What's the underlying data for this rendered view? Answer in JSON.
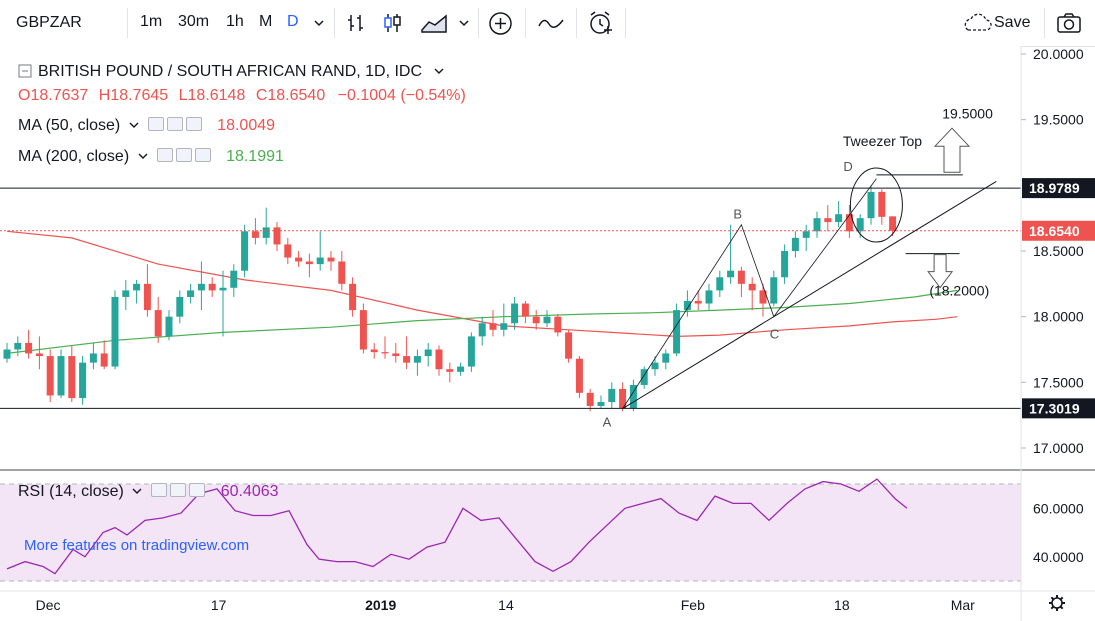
{
  "toolbar": {
    "symbol": "GBPZAR",
    "intervals": [
      "1m",
      "30m",
      "1h",
      "M",
      "D"
    ],
    "active_interval": "D",
    "save_label": "Save"
  },
  "legend": {
    "title": "BRITISH POUND / SOUTH AFRICAN RAND, 1D, IDC",
    "ohlc": {
      "o_label": "O",
      "o": "18.7637",
      "h_label": "H",
      "h": "18.7645",
      "l_label": "L",
      "l": "18.6148",
      "c_label": "C",
      "c": "18.6540",
      "change": "−0.1004 (−0.54%)"
    },
    "ma50_label": "MA (50, close)",
    "ma50_value": "18.0049",
    "ma200_label": "MA (200, close)",
    "ma200_value": "18.1991",
    "rsi_label": "RSI (14, close)",
    "rsi_value": "60.4063"
  },
  "watermark": "More features on tradingview.com",
  "colors": {
    "up": "#26a69a",
    "down": "#ef5350",
    "ma50": "#ef5350",
    "ma200": "#4caf50",
    "rsi": "#9c27b0",
    "rsi_band": "#f3e5f5",
    "accent": "#2962ff"
  },
  "chart_data": {
    "type": "candlestick",
    "price_ylim": [
      16.7,
      20.1
    ],
    "price_ticks": [
      "20.0000",
      "19.5000",
      "18.5000",
      "18.0000",
      "17.5000",
      "17.0000"
    ],
    "price_tick_values": [
      20.0,
      19.5,
      18.5,
      18.0,
      17.5,
      17.0
    ],
    "x_labels": [
      "Dec",
      "17",
      "2019",
      "14",
      "Feb",
      "18",
      "Mar",
      "18"
    ],
    "x_label_index": [
      3.8,
      19.6,
      34.6,
      46.2,
      63.5,
      77.3,
      88.5,
      102.0
    ],
    "horizontal_levels": [
      {
        "value": 18.9789,
        "label": "18.9789"
      },
      {
        "value": 17.3019,
        "label": "17.3019"
      }
    ],
    "last_price": {
      "value": 18.654,
      "label": "18.6540"
    },
    "candles": [
      [
        17.68,
        17.8,
        17.65,
        17.75
      ],
      [
        17.75,
        17.85,
        17.7,
        17.8
      ],
      [
        17.8,
        17.9,
        17.68,
        17.72
      ],
      [
        17.72,
        17.85,
        17.6,
        17.7
      ],
      [
        17.7,
        17.75,
        17.35,
        17.4
      ],
      [
        17.4,
        17.75,
        17.38,
        17.7
      ],
      [
        17.7,
        17.78,
        17.35,
        17.38
      ],
      [
        17.38,
        17.7,
        17.33,
        17.65
      ],
      [
        17.65,
        17.8,
        17.6,
        17.72
      ],
      [
        17.72,
        17.82,
        17.6,
        17.62
      ],
      [
        17.62,
        18.2,
        17.6,
        18.15
      ],
      [
        18.15,
        18.28,
        18.05,
        18.2
      ],
      [
        18.2,
        18.28,
        18.1,
        18.25
      ],
      [
        18.25,
        18.4,
        18.0,
        18.05
      ],
      [
        18.05,
        18.15,
        17.8,
        17.85
      ],
      [
        17.85,
        18.05,
        17.82,
        18.0
      ],
      [
        18.0,
        18.2,
        17.95,
        18.15
      ],
      [
        18.15,
        18.25,
        18.1,
        18.2
      ],
      [
        18.2,
        18.42,
        18.05,
        18.25
      ],
      [
        18.25,
        18.3,
        18.15,
        18.2
      ],
      [
        18.2,
        18.35,
        17.85,
        18.22
      ],
      [
        18.22,
        18.4,
        18.15,
        18.35
      ],
      [
        18.35,
        18.7,
        18.3,
        18.65
      ],
      [
        18.65,
        18.75,
        18.55,
        18.6
      ],
      [
        18.6,
        18.83,
        18.55,
        18.68
      ],
      [
        18.68,
        18.72,
        18.5,
        18.55
      ],
      [
        18.55,
        18.6,
        18.4,
        18.45
      ],
      [
        18.45,
        18.5,
        18.38,
        18.42
      ],
      [
        18.42,
        18.48,
        18.3,
        18.4
      ],
      [
        18.4,
        18.65,
        18.35,
        18.45
      ],
      [
        18.45,
        18.5,
        18.35,
        18.42
      ],
      [
        18.42,
        18.5,
        18.2,
        18.25
      ],
      [
        18.25,
        18.3,
        18.0,
        18.05
      ],
      [
        18.05,
        18.1,
        17.72,
        17.75
      ],
      [
        17.75,
        17.8,
        17.68,
        17.73
      ],
      [
        17.73,
        17.85,
        17.68,
        17.72
      ],
      [
        17.72,
        17.8,
        17.65,
        17.7
      ],
      [
        17.7,
        17.85,
        17.6,
        17.65
      ],
      [
        17.65,
        17.75,
        17.55,
        17.7
      ],
      [
        17.7,
        17.8,
        17.62,
        17.75
      ],
      [
        17.75,
        17.78,
        17.55,
        17.6
      ],
      [
        17.6,
        17.65,
        17.5,
        17.58
      ],
      [
        17.58,
        17.65,
        17.55,
        17.62
      ],
      [
        17.62,
        17.88,
        17.58,
        17.85
      ],
      [
        17.85,
        18.0,
        17.78,
        17.95
      ],
      [
        17.95,
        18.05,
        17.85,
        17.9
      ],
      [
        17.9,
        18.1,
        17.85,
        17.95
      ],
      [
        17.95,
        18.15,
        17.9,
        18.1
      ],
      [
        18.1,
        18.12,
        17.95,
        18.0
      ],
      [
        18.0,
        18.05,
        17.9,
        17.95
      ],
      [
        17.95,
        18.05,
        17.92,
        18.0
      ],
      [
        18.0,
        18.02,
        17.85,
        17.88
      ],
      [
        17.88,
        17.9,
        17.65,
        17.68
      ],
      [
        17.68,
        17.7,
        17.38,
        17.42
      ],
      [
        17.42,
        17.45,
        17.28,
        17.32
      ],
      [
        17.32,
        17.4,
        17.3,
        17.35
      ],
      [
        17.35,
        17.5,
        17.3,
        17.45
      ],
      [
        17.45,
        17.5,
        17.28,
        17.3
      ],
      [
        17.3,
        17.52,
        17.28,
        17.48
      ],
      [
        17.48,
        17.62,
        17.45,
        17.6
      ],
      [
        17.6,
        17.7,
        17.55,
        17.65
      ],
      [
        17.65,
        17.75,
        17.6,
        17.72
      ],
      [
        17.72,
        18.1,
        17.7,
        18.05
      ],
      [
        18.05,
        18.2,
        18.0,
        18.12
      ],
      [
        18.12,
        18.2,
        18.05,
        18.1
      ],
      [
        18.1,
        18.25,
        18.05,
        18.2
      ],
      [
        18.2,
        18.35,
        18.15,
        18.3
      ],
      [
        18.3,
        18.7,
        18.25,
        18.35
      ],
      [
        18.35,
        18.38,
        18.15,
        18.25
      ],
      [
        18.25,
        18.3,
        18.05,
        18.2
      ],
      [
        18.2,
        18.25,
        18.0,
        18.1
      ],
      [
        18.1,
        18.35,
        18.08,
        18.3
      ],
      [
        18.3,
        18.55,
        18.25,
        18.5
      ],
      [
        18.5,
        18.65,
        18.45,
        18.6
      ],
      [
        18.6,
        18.7,
        18.5,
        18.65
      ],
      [
        18.65,
        18.8,
        18.6,
        18.75
      ],
      [
        18.75,
        18.85,
        18.65,
        18.72
      ],
      [
        18.72,
        18.88,
        18.68,
        18.78
      ],
      [
        18.78,
        18.85,
        18.6,
        18.65
      ],
      [
        18.65,
        18.78,
        18.6,
        18.75
      ],
      [
        18.75,
        19.0,
        18.7,
        18.95
      ],
      [
        18.95,
        18.97,
        18.7,
        18.76
      ],
      [
        18.7637,
        18.7645,
        18.6148,
        18.654
      ]
    ],
    "ma50": [
      [
        0,
        18.65
      ],
      [
        6,
        18.6
      ],
      [
        14,
        18.4
      ],
      [
        22,
        18.28
      ],
      [
        30,
        18.2
      ],
      [
        38,
        18.05
      ],
      [
        46,
        17.93
      ],
      [
        52,
        17.9
      ],
      [
        56,
        17.88
      ],
      [
        62,
        17.85
      ],
      [
        66,
        17.86
      ],
      [
        72,
        17.9
      ],
      [
        78,
        17.93
      ],
      [
        82,
        17.96
      ],
      [
        86,
        17.98
      ],
      [
        88,
        18.0
      ]
    ],
    "ma200": [
      [
        0,
        17.72
      ],
      [
        10,
        17.82
      ],
      [
        20,
        17.88
      ],
      [
        30,
        17.92
      ],
      [
        38,
        17.97
      ],
      [
        46,
        18.0
      ],
      [
        54,
        18.02
      ],
      [
        60,
        18.03
      ],
      [
        66,
        18.05
      ],
      [
        72,
        18.07
      ],
      [
        78,
        18.1
      ],
      [
        84,
        18.15
      ],
      [
        88,
        18.2
      ]
    ],
    "rsi": {
      "ylim": [
        25,
        80
      ],
      "ticks": [
        "60.0000",
        "40.0000"
      ],
      "tick_values": [
        60,
        40
      ],
      "band": [
        30,
        70
      ],
      "values": [
        [
          0,
          35
        ],
        [
          3,
          38
        ],
        [
          6,
          36
        ],
        [
          8,
          33
        ],
        [
          11,
          43
        ],
        [
          13,
          40
        ],
        [
          16,
          50
        ],
        [
          18,
          52
        ],
        [
          20,
          49
        ],
        [
          23,
          55
        ],
        [
          26,
          56
        ],
        [
          29,
          58
        ],
        [
          32,
          66
        ],
        [
          35,
          68
        ],
        [
          38,
          59
        ],
        [
          41,
          57
        ],
        [
          44,
          57
        ],
        [
          47,
          59
        ],
        [
          50,
          45
        ],
        [
          52,
          39
        ],
        [
          55,
          38
        ],
        [
          58,
          38
        ],
        [
          61,
          36
        ],
        [
          64,
          41
        ],
        [
          67,
          39
        ],
        [
          70,
          44
        ],
        [
          73,
          46
        ],
        [
          76,
          60
        ],
        [
          79,
          55
        ],
        [
          82,
          56
        ],
        [
          85,
          47
        ],
        [
          88,
          38
        ],
        [
          91,
          34
        ],
        [
          94,
          38
        ],
        [
          97,
          46
        ],
        [
          100,
          53
        ],
        [
          103,
          60
        ],
        [
          106,
          62
        ],
        [
          109,
          64
        ],
        [
          112,
          58
        ],
        [
          115,
          55
        ],
        [
          118,
          65
        ],
        [
          121,
          62
        ],
        [
          124,
          62
        ],
        [
          127,
          55
        ],
        [
          130,
          62
        ],
        [
          133,
          68
        ],
        [
          136,
          71
        ],
        [
          139,
          70
        ],
        [
          142,
          67
        ],
        [
          145,
          72
        ],
        [
          148,
          64
        ],
        [
          150,
          60
        ]
      ]
    },
    "annotations": {
      "point_labels": [
        "A",
        "B",
        "C",
        "D"
      ],
      "pattern_label": "Tweezer Top",
      "target_up": "19.5000",
      "target_down": "(18.2000)"
    }
  }
}
